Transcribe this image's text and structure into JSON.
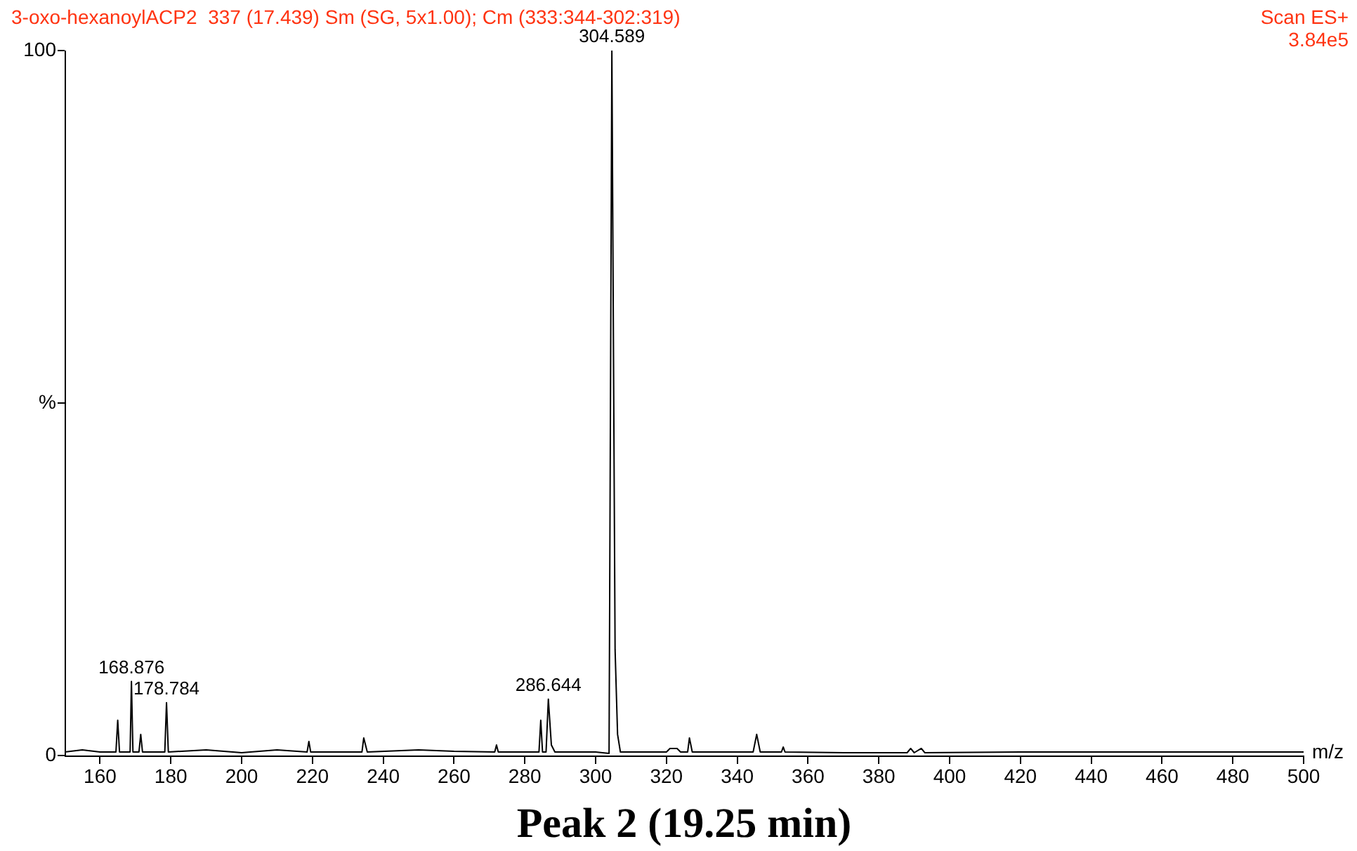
{
  "chart_data": {
    "type": "line",
    "title": "3-oxo-hexanoylACP2  337 (17.439) Sm (SG, 5x1.00); Cm (333:344-302:319)",
    "xlabel": "m/z",
    "x": [
      150,
      155,
      160,
      164.5,
      165,
      165.5,
      168.5,
      168.876,
      169.3,
      171,
      171.5,
      172,
      178.3,
      178.784,
      179.3,
      190,
      200,
      210,
      218.5,
      219,
      219.5,
      234,
      234.5,
      235.5,
      250,
      260,
      271.5,
      272,
      272.5,
      284,
      284.5,
      285,
      286,
      286.644,
      287.5,
      288.5,
      300,
      303.8,
      304.589,
      305.5,
      306.2,
      307,
      320,
      321,
      323,
      324,
      326,
      326.5,
      327.3,
      344.5,
      345.5,
      346.5,
      352.5,
      353,
      353.5,
      370,
      388,
      389,
      390,
      392,
      393,
      420,
      450,
      480,
      500
    ],
    "series": [
      {
        "color": "#000000",
        "values": [
          0.5,
          0.8,
          0.5,
          0.5,
          5,
          0.5,
          0.5,
          10.5,
          0.5,
          0.5,
          3,
          0.5,
          0.5,
          7.5,
          0.5,
          0.8,
          0.4,
          0.8,
          0.5,
          2,
          0.5,
          0.5,
          2.5,
          0.5,
          0.8,
          0.6,
          0.5,
          1.5,
          0.5,
          0.5,
          5,
          0.5,
          0.5,
          8,
          1.5,
          0.5,
          0.5,
          0.3,
          100,
          15,
          3,
          0.5,
          0.5,
          1,
          1,
          0.5,
          0.5,
          2.5,
          0.5,
          0.5,
          3,
          0.5,
          0.5,
          1.2,
          0.5,
          0.4,
          0.4,
          1,
          0.4,
          1,
          0.4,
          0.5,
          0.5,
          0.5,
          0.5
        ]
      }
    ],
    "xlim": [
      150,
      500
    ],
    "xticks": [
      160,
      180,
      200,
      220,
      240,
      260,
      280,
      300,
      320,
      340,
      360,
      380,
      400,
      420,
      440,
      460,
      480,
      500
    ],
    "ylim": [
      0,
      100
    ],
    "yticks": [
      0,
      {
        "value": 50,
        "label": "%"
      },
      100
    ],
    "grid": false,
    "legend": false,
    "marker": "none",
    "line_style": "solid",
    "annotations": [
      "Scan ES+",
      "3.84e5",
      "Peak 2 (19.25 min)",
      {
        "text": "168.876",
        "x": 168.876,
        "y": 10.5
      },
      {
        "text": "178.784",
        "x": 178.784,
        "y": 7.5
      },
      {
        "text": "286.644",
        "x": 286.644,
        "y": 8
      },
      {
        "text": "304.589",
        "x": 304.589,
        "y": 100
      }
    ]
  }
}
